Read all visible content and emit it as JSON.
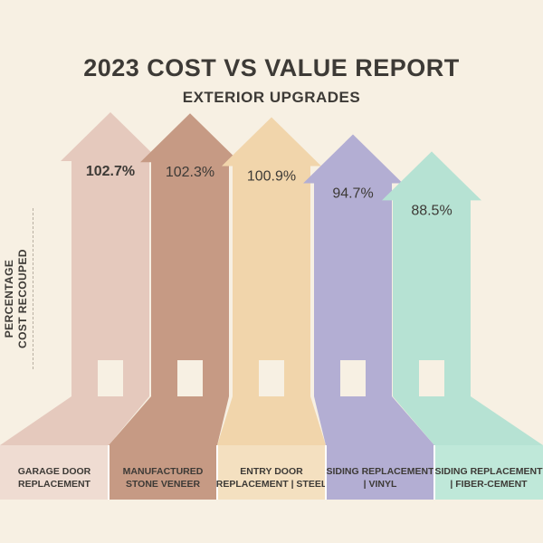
{
  "header": {
    "title": "2023 COST VS VALUE REPORT",
    "subtitle": "EXTERIOR UPGRADES"
  },
  "chart_data": {
    "type": "bar",
    "title": "2023 COST VS VALUE REPORT",
    "subtitle": "EXTERIOR UPGRADES",
    "ylabel": "PERCENTAGE\nCOST RECOUPED",
    "xlabel": "",
    "categories": [
      "GARAGE DOOR REPLACEMENT",
      "MANUFACTURED STONE VENEER",
      "ENTRY DOOR REPLACEMENT | STEEL",
      "SIDING REPLACEMENT | VINYL",
      "SIDING REPLACEMENT | FIBER-CEMENT"
    ],
    "category_lines": [
      [
        "GARAGE DOOR",
        "REPLACEMENT"
      ],
      [
        "MANUFACTURED",
        "STONE VENEER"
      ],
      [
        "ENTRY DOOR",
        "REPLACEMENT | STEEL"
      ],
      [
        "SIDING REPLACEMENT",
        "| VINYL"
      ],
      [
        "SIDING REPLACEMENT",
        "| FIBER-CEMENT"
      ]
    ],
    "values": [
      102.7,
      102.3,
      100.9,
      94.7,
      88.5
    ],
    "value_labels": [
      "102.7%",
      "102.3%",
      "100.9%",
      "94.7%",
      "88.5%"
    ],
    "colors": [
      "#e5c9bd",
      "#c69a84",
      "#f1d5ab",
      "#b3aed3",
      "#b6e2d3"
    ],
    "label_box_colors": [
      "#efdcd2",
      "#c69a84",
      "#f4e0c0",
      "#b3aed3",
      "#bfe8d9"
    ],
    "legend": "none",
    "grid": false
  }
}
